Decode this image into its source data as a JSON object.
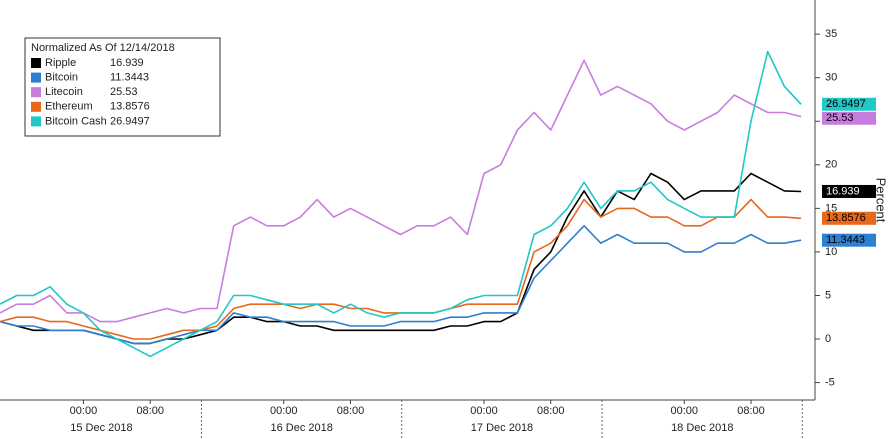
{
  "chart_data": {
    "type": "line",
    "legend_title": "Normalized As Of 12/14/2018",
    "y_label": "Percent",
    "legend": "upper left",
    "x": [
      "2018-12-14 14:00",
      "2018-12-14 16:00",
      "2018-12-14 18:00",
      "2018-12-14 20:00",
      "2018-12-14 22:00",
      "2018-12-15 00:00",
      "2018-12-15 02:00",
      "2018-12-15 04:00",
      "2018-12-15 06:00",
      "2018-12-15 08:00",
      "2018-12-15 10:00",
      "2018-12-15 12:00",
      "2018-12-15 14:00",
      "2018-12-15 16:00",
      "2018-12-15 18:00",
      "2018-12-15 20:00",
      "2018-12-15 22:00",
      "2018-12-16 00:00",
      "2018-12-16 02:00",
      "2018-12-16 04:00",
      "2018-12-16 06:00",
      "2018-12-16 08:00",
      "2018-12-16 10:00",
      "2018-12-16 12:00",
      "2018-12-16 14:00",
      "2018-12-16 16:00",
      "2018-12-16 18:00",
      "2018-12-16 20:00",
      "2018-12-16 22:00",
      "2018-12-17 00:00",
      "2018-12-17 02:00",
      "2018-12-17 04:00",
      "2018-12-17 06:00",
      "2018-12-17 08:00",
      "2018-12-17 10:00",
      "2018-12-17 12:00",
      "2018-12-17 14:00",
      "2018-12-17 16:00",
      "2018-12-17 18:00",
      "2018-12-17 20:00",
      "2018-12-17 22:00",
      "2018-12-18 00:00",
      "2018-12-18 02:00",
      "2018-12-18 04:00",
      "2018-12-18 06:00",
      "2018-12-18 08:00",
      "2018-12-18 10:00",
      "2018-12-18 12:00",
      "2018-12-18 14:00"
    ],
    "xlim": [
      "2018-12-14 14:00",
      "2018-12-18 15:40"
    ],
    "xticks": [
      {
        "value": "2018-12-15 00:00",
        "label": "00:00"
      },
      {
        "value": "2018-12-15 08:00",
        "label": "08:00"
      },
      {
        "value": "2018-12-16 00:00",
        "label": "00:00"
      },
      {
        "value": "2018-12-16 08:00",
        "label": "08:00"
      },
      {
        "value": "2018-12-17 00:00",
        "label": "00:00"
      },
      {
        "value": "2018-12-17 08:00",
        "label": "08:00"
      },
      {
        "value": "2018-12-18 00:00",
        "label": "00:00"
      },
      {
        "value": "2018-12-18 08:00",
        "label": "08:00"
      }
    ],
    "day_labels": [
      {
        "value": "2018-12-15 00:00",
        "label": "15 Dec 2018"
      },
      {
        "value": "2018-12-16 00:00",
        "label": "16 Dec 2018"
      },
      {
        "value": "2018-12-17 00:00",
        "label": "17 Dec 2018"
      },
      {
        "value": "2018-12-18 00:00",
        "label": "18 Dec 2018"
      }
    ],
    "ylim": [
      -7,
      38
    ],
    "yticks": [
      -5,
      0,
      5,
      10,
      15,
      20,
      25,
      30,
      35
    ],
    "series": [
      {
        "name": "Ripple",
        "color": "#000000",
        "values": [
          2,
          1.5,
          1,
          1,
          1,
          1,
          0.5,
          0,
          -0.5,
          -0.5,
          0,
          0,
          0.5,
          1,
          2.5,
          2.5,
          2,
          2,
          1.5,
          1.5,
          1,
          1,
          1,
          1,
          1,
          1,
          1,
          1.5,
          1.5,
          2,
          2,
          3,
          8,
          10,
          14,
          17,
          14,
          17,
          16,
          19,
          18,
          16,
          17,
          17,
          17,
          19,
          18,
          17,
          16.939
        ]
      },
      {
        "name": "Bitcoin",
        "color": "#2f7fd0",
        "values": [
          2,
          1.5,
          1.5,
          1,
          1,
          1,
          0.5,
          0,
          -0.5,
          -0.5,
          0,
          0.5,
          1,
          1,
          3,
          2.5,
          2.5,
          2,
          2,
          2,
          2,
          1.5,
          1.5,
          1.5,
          2,
          2,
          2,
          2.5,
          2.5,
          3,
          3,
          3,
          7,
          9,
          11,
          13,
          11,
          12,
          11,
          11,
          11,
          10,
          10,
          11,
          11,
          12,
          11,
          11,
          11.3443
        ]
      },
      {
        "name": "Litecoin",
        "color": "#c77dde",
        "values": [
          3,
          4,
          4,
          5,
          3,
          3,
          2,
          2,
          2.5,
          3,
          3.5,
          3,
          3.5,
          3.5,
          13,
          14,
          13,
          13,
          14,
          16,
          14,
          15,
          14,
          13,
          12,
          13,
          13,
          14,
          12,
          19,
          20,
          24,
          26,
          24,
          28,
          32,
          28,
          29,
          28,
          27,
          25,
          24,
          25,
          26,
          28,
          27,
          26,
          26,
          25.53
        ]
      },
      {
        "name": "Ethereum",
        "color": "#e8681c",
        "values": [
          2,
          2.5,
          2.5,
          2,
          2,
          1.5,
          1,
          0.5,
          0,
          0,
          0.5,
          1,
          1,
          1.5,
          3.5,
          4,
          4,
          4,
          3.5,
          4,
          4,
          3.5,
          3.5,
          3,
          3,
          3,
          3,
          3.5,
          4,
          4,
          4,
          4,
          10,
          11,
          13,
          16,
          14,
          15,
          15,
          14,
          14,
          13,
          13,
          14,
          14,
          16,
          14,
          14,
          13.8576
        ]
      },
      {
        "name": "Bitcoin Cash",
        "color": "#22c7c7",
        "values": [
          4,
          5,
          5,
          6,
          4,
          3,
          1,
          0,
          -1,
          -2,
          -1,
          0,
          1,
          2,
          5,
          5,
          4.5,
          4,
          4,
          4,
          3,
          4,
          3,
          2.5,
          3,
          3,
          3,
          3.5,
          4.5,
          5,
          5,
          5,
          12,
          13,
          15,
          18,
          15,
          17,
          17,
          18,
          16,
          15,
          14,
          14,
          14,
          25,
          33,
          29,
          26.9497
        ]
      }
    ]
  }
}
